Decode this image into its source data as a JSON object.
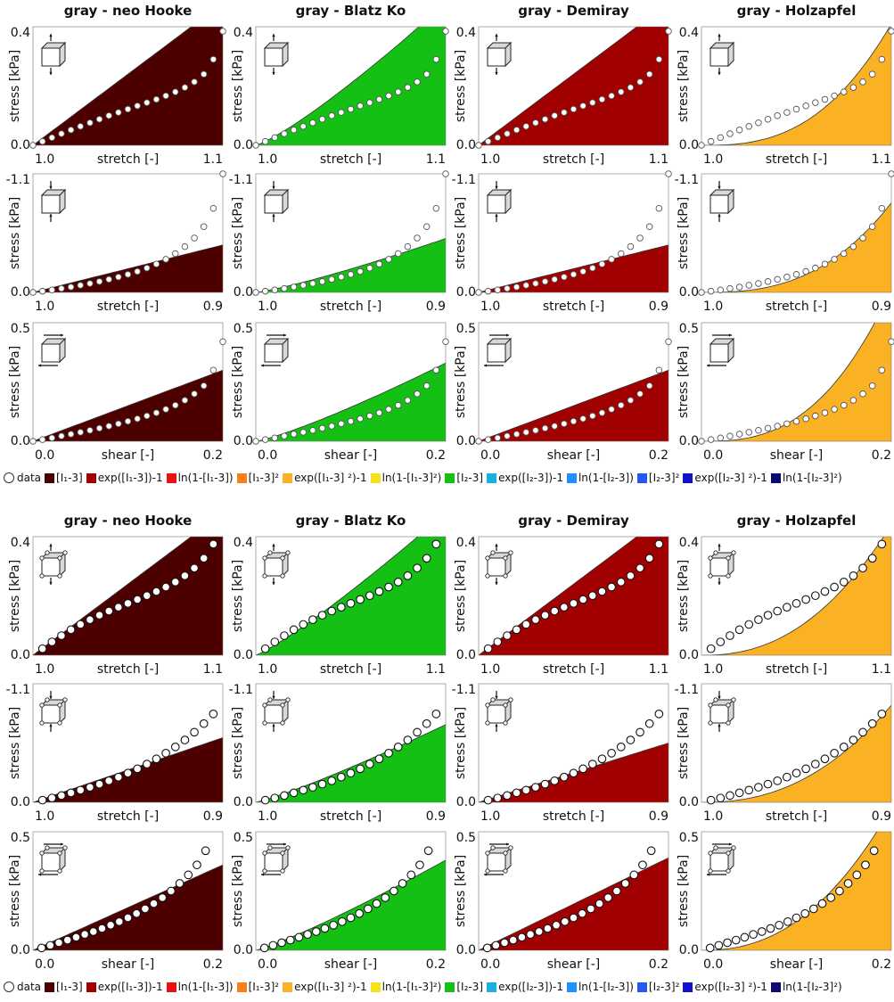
{
  "chart_data": [
    {
      "figure": "top",
      "type": "area",
      "marker_style": "open-circle",
      "columns": [
        {
          "title": "gray - neo Hooke",
          "color": "#4d0000",
          "exponent": 1.0
        },
        {
          "title": "gray - Blatz Ko",
          "color": "#14c014",
          "exponent": 1.2
        },
        {
          "title": "gray - Demiray",
          "color": "#a00000",
          "exponent": 1.0
        },
        {
          "title": "gray - Holzapfel",
          "color": "#fbb124",
          "exponent": 2.7
        }
      ],
      "rows": [
        {
          "mode": "tension",
          "icon": "tension-cube-icon",
          "xlabel": "stretch [-]",
          "ylabel": "stress [kPa]",
          "xticks": [
            "1.0",
            "1.1"
          ],
          "yticks": [
            "0.0",
            "0.4"
          ],
          "xlim": [
            1.0,
            1.1
          ],
          "ylim": [
            0.0,
            0.4
          ],
          "data_x": [
            1.0,
            1.005,
            1.01,
            1.015,
            1.02,
            1.025,
            1.03,
            1.035,
            1.04,
            1.045,
            1.05,
            1.055,
            1.06,
            1.065,
            1.07,
            1.075,
            1.08,
            1.085,
            1.09,
            1.095,
            1.1
          ],
          "data_y": [
            0.0,
            0.013,
            0.026,
            0.039,
            0.052,
            0.064,
            0.076,
            0.088,
            0.1,
            0.111,
            0.122,
            0.133,
            0.144,
            0.155,
            0.167,
            0.18,
            0.195,
            0.214,
            0.24,
            0.29,
            0.385
          ],
          "fit_peak": [
            0.48,
            0.48,
            0.48,
            0.41
          ]
        },
        {
          "mode": "compression",
          "icon": "compression-cube-icon",
          "xlabel": "stretch [-]",
          "ylabel": "stress [kPa]",
          "xticks": [
            "1.0",
            "0.9"
          ],
          "yticks": [
            "0.0",
            "-1.1"
          ],
          "xlim": [
            1.0,
            0.9
          ],
          "ylim": [
            0.0,
            -1.1
          ],
          "data_x": [
            1.0,
            0.995,
            0.99,
            0.985,
            0.98,
            0.975,
            0.97,
            0.965,
            0.96,
            0.955,
            0.95,
            0.945,
            0.94,
            0.935,
            0.93,
            0.925,
            0.92,
            0.915,
            0.91,
            0.905,
            0.9
          ],
          "data_y": [
            0.0,
            -0.011,
            -0.023,
            -0.036,
            -0.05,
            -0.066,
            -0.083,
            -0.101,
            -0.121,
            -0.143,
            -0.167,
            -0.194,
            -0.226,
            -0.263,
            -0.307,
            -0.36,
            -0.425,
            -0.505,
            -0.61,
            -0.78,
            -1.1
          ],
          "fit_peak": [
            -0.44,
            -0.5,
            -0.44,
            -0.83
          ]
        },
        {
          "mode": "shear",
          "icon": "shear-cube-icon",
          "xlabel": "shear [-]",
          "ylabel": "stress [kPa]",
          "xticks": [
            "0.0",
            "0.2"
          ],
          "yticks": [
            "0.0",
            "0.5"
          ],
          "xlim": [
            0.0,
            0.22
          ],
          "ylim": [
            0.0,
            0.5
          ],
          "data_x": [
            0.0,
            0.011,
            0.022,
            0.033,
            0.044,
            0.055,
            0.066,
            0.077,
            0.088,
            0.099,
            0.11,
            0.121,
            0.132,
            0.143,
            0.154,
            0.165,
            0.176,
            0.187,
            0.198,
            0.209,
            0.22
          ],
          "data_y": [
            0.0,
            0.007,
            0.014,
            0.022,
            0.03,
            0.038,
            0.046,
            0.055,
            0.064,
            0.074,
            0.084,
            0.095,
            0.107,
            0.12,
            0.135,
            0.152,
            0.173,
            0.2,
            0.234,
            0.3,
            0.42
          ],
          "fit_peak": [
            0.3,
            0.33,
            0.3,
            0.64
          ]
        }
      ],
      "legend": [
        {
          "label": "data",
          "kind": "circle"
        },
        {
          "label": "[I₁-3]",
          "color": "#4d0000"
        },
        {
          "label": "exp([I₁-3])-1",
          "color": "#a00000"
        },
        {
          "label": "ln(1-[I₁-3])",
          "color": "#e81010"
        },
        {
          "label": "[I₁-3]²",
          "color": "#f7801a"
        },
        {
          "label": "exp([I₁-3] ²)-1",
          "color": "#fbb124"
        },
        {
          "label": "ln(1-[I₁-3]²)",
          "color": "#f5e11c"
        },
        {
          "label": "[I₂-3]",
          "color": "#14c014"
        },
        {
          "label": "exp([I₂-3])-1",
          "color": "#1ab0e0"
        },
        {
          "label": "ln(1-[I₂-3])",
          "color": "#1e90ff"
        },
        {
          "label": "[I₂-3]²",
          "color": "#2458f0"
        },
        {
          "label": "exp([I₂-3] ²)-1",
          "color": "#1212c8"
        },
        {
          "label": "ln(1-[I₂-3]²)",
          "color": "#0a0a70"
        }
      ]
    },
    {
      "figure": "bottom",
      "type": "area",
      "marker_style": "filled-outlined-circle",
      "columns": [
        {
          "title": "gray - neo Hooke",
          "color": "#4d0000",
          "exponent": 1.0
        },
        {
          "title": "gray - Blatz Ko",
          "color": "#14c014",
          "exponent": 1.15
        },
        {
          "title": "gray - Demiray",
          "color": "#a00000",
          "exponent": 1.0
        },
        {
          "title": "gray - Holzapfel",
          "color": "#fbb124",
          "exponent": 2.3
        }
      ],
      "rows": [
        {
          "mode": "tension",
          "icon": "tension-cube-icon",
          "xlabel": "stretch [-]",
          "ylabel": "stress [kPa]",
          "xticks": [
            "1.0",
            "1.1"
          ],
          "yticks": [
            "0.0",
            "0.4"
          ],
          "xlim": [
            1.0,
            1.1
          ],
          "ylim": [
            0.0,
            0.4
          ],
          "data_x": [
            1.005,
            1.01,
            1.015,
            1.02,
            1.025,
            1.03,
            1.035,
            1.04,
            1.045,
            1.05,
            1.055,
            1.06,
            1.065,
            1.07,
            1.075,
            1.08,
            1.085,
            1.09,
            1.095
          ],
          "data_y": [
            0.022,
            0.045,
            0.066,
            0.086,
            0.104,
            0.12,
            0.135,
            0.149,
            0.162,
            0.175,
            0.188,
            0.201,
            0.215,
            0.23,
            0.247,
            0.268,
            0.294,
            0.327,
            0.375
          ],
          "fit_peak": [
            0.48,
            0.48,
            0.48,
            0.44
          ]
        },
        {
          "mode": "compression",
          "icon": "compression-cube-icon",
          "xlabel": "stretch [-]",
          "ylabel": "stress [kPa]",
          "xticks": [
            "1.0",
            "0.9"
          ],
          "yticks": [
            "0.0",
            "-1.1"
          ],
          "xlim": [
            1.0,
            0.9
          ],
          "ylim": [
            0.0,
            -1.1
          ],
          "data_x": [
            0.995,
            0.99,
            0.985,
            0.98,
            0.975,
            0.97,
            0.965,
            0.96,
            0.955,
            0.95,
            0.945,
            0.94,
            0.935,
            0.93,
            0.925,
            0.92,
            0.915,
            0.91,
            0.905
          ],
          "data_y": [
            -0.02,
            -0.04,
            -0.063,
            -0.088,
            -0.113,
            -0.14,
            -0.169,
            -0.2,
            -0.234,
            -0.271,
            -0.311,
            -0.355,
            -0.403,
            -0.456,
            -0.514,
            -0.578,
            -0.65,
            -0.73,
            -0.82
          ],
          "fit_peak": [
            -0.6,
            -0.72,
            -0.55,
            -0.9
          ]
        },
        {
          "mode": "shear",
          "icon": "shear-cube-icon",
          "xlabel": "shear [-]",
          "ylabel": "stress [kPa]",
          "xticks": [
            "0.0",
            "0.2"
          ],
          "yticks": [
            "0.0",
            "0.5"
          ],
          "xlim": [
            0.0,
            0.22
          ],
          "ylim": [
            0.0,
            0.5
          ],
          "data_x": [
            0.01,
            0.02,
            0.03,
            0.04,
            0.05,
            0.06,
            0.07,
            0.08,
            0.09,
            0.1,
            0.11,
            0.12,
            0.13,
            0.14,
            0.15,
            0.16,
            0.17,
            0.18,
            0.19,
            0.2
          ],
          "data_y": [
            0.01,
            0.021,
            0.032,
            0.043,
            0.055,
            0.067,
            0.079,
            0.092,
            0.106,
            0.121,
            0.137,
            0.155,
            0.175,
            0.197,
            0.222,
            0.25,
            0.282,
            0.318,
            0.36,
            0.42
          ],
          "fit_peak": [
            0.36,
            0.38,
            0.39,
            0.6
          ]
        }
      ],
      "legend": [
        {
          "label": "data",
          "kind": "circle"
        },
        {
          "label": "[I₁-3]",
          "color": "#4d0000"
        },
        {
          "label": "exp([I₁-3])-1",
          "color": "#a00000"
        },
        {
          "label": "ln(1-[I₁-3])",
          "color": "#e81010"
        },
        {
          "label": "[I₁-3]²",
          "color": "#f7801a"
        },
        {
          "label": "exp([I₁-3] ²)-1",
          "color": "#fbb124"
        },
        {
          "label": "ln(1-[I₁-3]²)",
          "color": "#f5e11c"
        },
        {
          "label": "[I₂-3]",
          "color": "#14c014"
        },
        {
          "label": "exp([I₂-3])-1",
          "color": "#1ab0e0"
        },
        {
          "label": "ln(1-[I₂-3])",
          "color": "#1e90ff"
        },
        {
          "label": "[I₂-3]²",
          "color": "#2458f0"
        },
        {
          "label": "exp([I₂-3] ²)-1",
          "color": "#1212c8"
        },
        {
          "label": "ln(1-[I₂-3]²)",
          "color": "#0a0a70"
        }
      ]
    }
  ]
}
